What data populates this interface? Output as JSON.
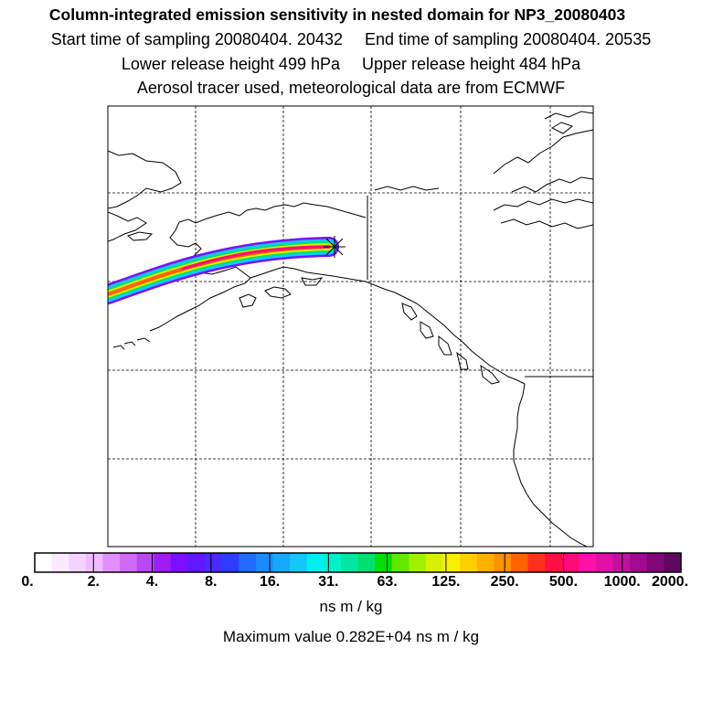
{
  "header": {
    "title": "Column-integrated emission sensitivity in nested domain for NP3_20080403",
    "start_label": "Start time of sampling 20080404. 20432",
    "end_label": "End time of sampling 20080404. 20535",
    "lower_label": "Lower release height  499 hPa",
    "upper_label": "Upper release height  484 hPa",
    "tracer_line": "Aerosol tracer used, meteorological data are from ECMWF"
  },
  "legend": {
    "ticks": [
      "0.",
      "2.",
      "4.",
      "8.",
      "16.",
      "31.",
      "63.",
      "125.",
      "250.",
      "500.",
      "1000.",
      "2000."
    ],
    "units": "ns m / kg",
    "max_value_text": "Maximum value  0.282E+04 ns m / kg",
    "colors": [
      "#ffffff",
      "#fbe9ff",
      "#f5d3ff",
      "#eebcff",
      "#e290ff",
      "#cf6bf5",
      "#b848f0",
      "#9d1ef0",
      "#7a10ff",
      "#5f18ff",
      "#4a2aff",
      "#2f3cff",
      "#1f6cff",
      "#1a8cff",
      "#14a8ff",
      "#12c8ff",
      "#00f0f0",
      "#00f0c8",
      "#00e8a0",
      "#00e070",
      "#00e000",
      "#60e800",
      "#a0f000",
      "#d8f000",
      "#f8f000",
      "#ffd000",
      "#ffb000",
      "#ff9000",
      "#ff6000",
      "#ff3020",
      "#ff1040",
      "#ff0a78",
      "#ff10a8",
      "#e010a8",
      "#c0109e",
      "#a00a90",
      "#800878",
      "#600860"
    ]
  },
  "map": {
    "receptor": "receptor-marker"
  }
}
